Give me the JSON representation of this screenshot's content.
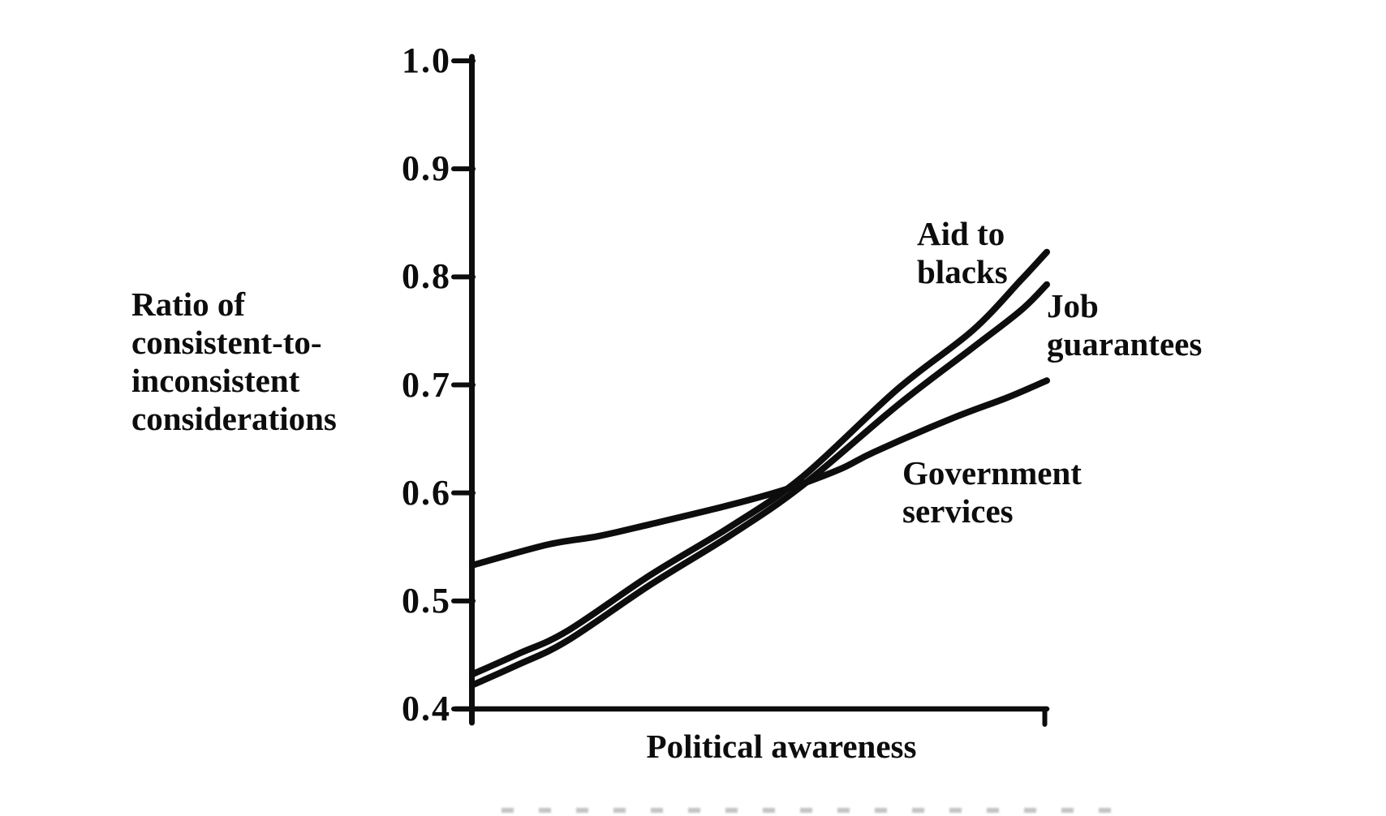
{
  "chart_data": {
    "type": "line",
    "title": "",
    "xlabel": "Political awareness",
    "ylabel": "Ratio of consistent-to-inconsistent considerations",
    "ylabel_lines": [
      "Ratio of",
      "consistent-to-",
      "inconsistent",
      "considerations"
    ],
    "xlim": [
      0,
      1
    ],
    "ylim": [
      0.4,
      1.0
    ],
    "grid": false,
    "legend_position": "inline-labels",
    "line_color": "#0d0d0d",
    "y_ticks": [
      {
        "value": 1.0,
        "label": "1.0"
      },
      {
        "value": 0.9,
        "label": "0.9"
      },
      {
        "value": 0.8,
        "label": "0.8"
      },
      {
        "value": 0.7,
        "label": "0.7"
      },
      {
        "value": 0.6,
        "label": "0.6"
      },
      {
        "value": 0.5,
        "label": "0.5"
      },
      {
        "value": 0.4,
        "label": "0.4"
      }
    ],
    "series": [
      {
        "name": "Aid to blacks",
        "label_lines": [
          "Aid to",
          "blacks"
        ],
        "points": [
          [
            0.0,
            0.432
          ],
          [
            0.08,
            0.451
          ],
          [
            0.165,
            0.472
          ],
          [
            0.31,
            0.524
          ],
          [
            0.45,
            0.569
          ],
          [
            0.575,
            0.615
          ],
          [
            0.74,
            0.696
          ],
          [
            0.87,
            0.75
          ],
          [
            0.955,
            0.797
          ],
          [
            1.0,
            0.823
          ]
        ]
      },
      {
        "name": "Job guarantees",
        "label_lines": [
          "Job",
          "guarantees"
        ],
        "points": [
          [
            0.0,
            0.422
          ],
          [
            0.08,
            0.441
          ],
          [
            0.165,
            0.463
          ],
          [
            0.31,
            0.515
          ],
          [
            0.45,
            0.561
          ],
          [
            0.575,
            0.607
          ],
          [
            0.74,
            0.681
          ],
          [
            0.87,
            0.734
          ],
          [
            0.955,
            0.769
          ],
          [
            1.0,
            0.793
          ]
        ]
      },
      {
        "name": "Government services",
        "label_lines": [
          "Government",
          "services"
        ],
        "points": [
          [
            0.0,
            0.533
          ],
          [
            0.13,
            0.552
          ],
          [
            0.22,
            0.56
          ],
          [
            0.31,
            0.571
          ],
          [
            0.45,
            0.589
          ],
          [
            0.55,
            0.604
          ],
          [
            0.64,
            0.622
          ],
          [
            0.7,
            0.638
          ],
          [
            0.835,
            0.669
          ],
          [
            0.93,
            0.688
          ],
          [
            1.0,
            0.704
          ]
        ]
      }
    ]
  }
}
